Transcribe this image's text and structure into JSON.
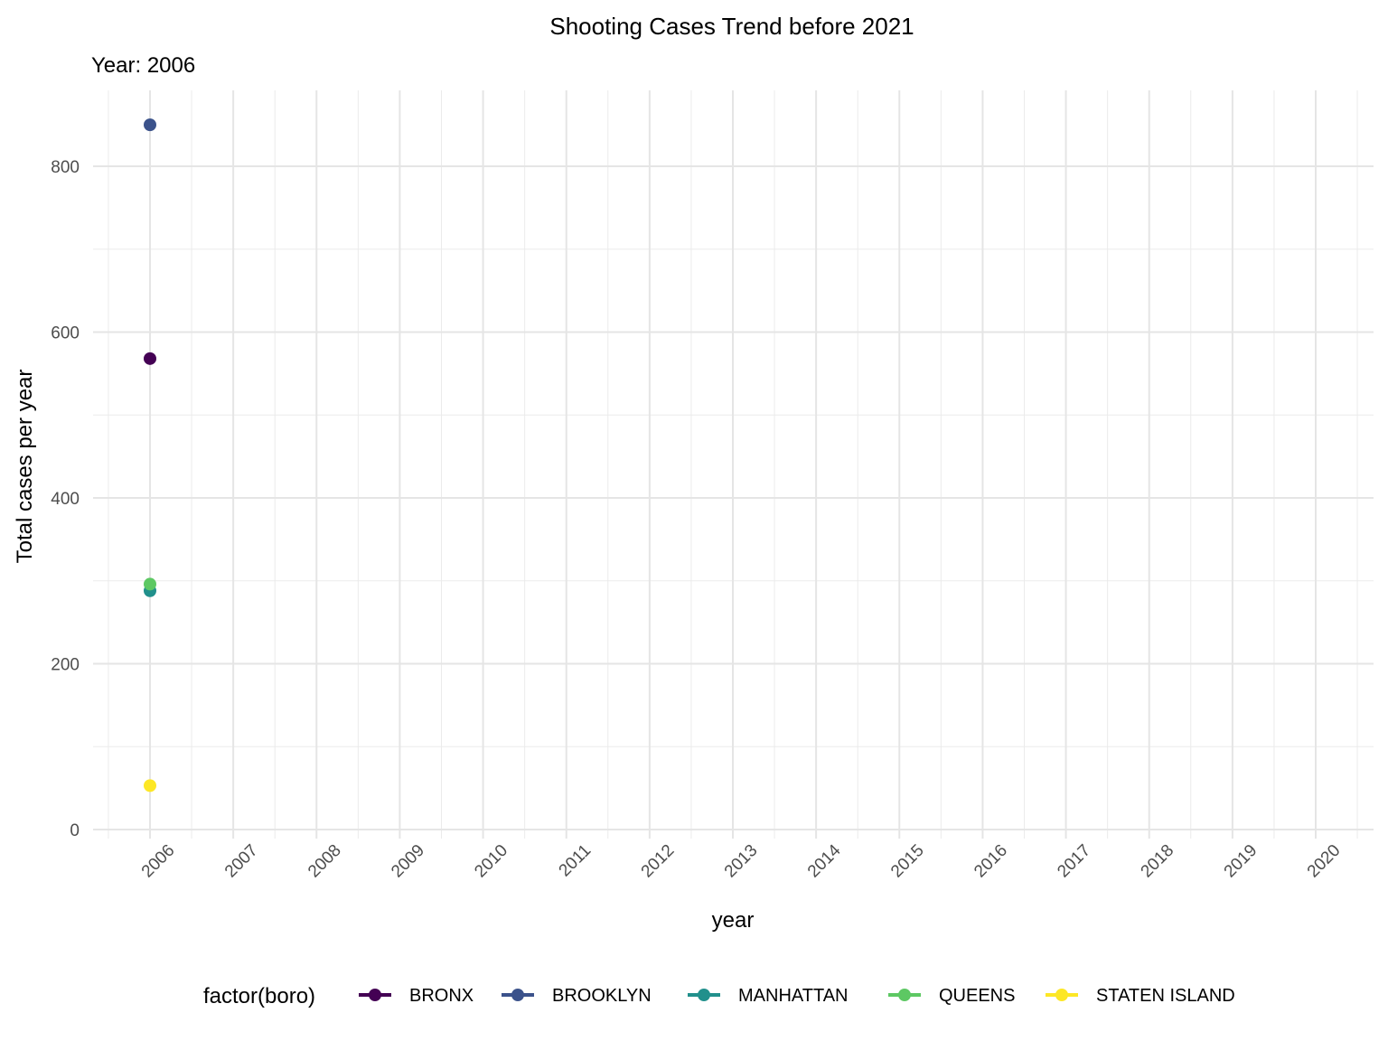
{
  "chart_data": {
    "type": "scatter",
    "title": "Shooting Cases Trend before 2021",
    "subtitle": "Year: 2006",
    "xlabel": "year",
    "ylabel": "Total cases per year",
    "xlim": [
      2005.5,
      2020.5
    ],
    "ylim": [
      -10,
      890
    ],
    "x_ticks": [
      2006,
      2007,
      2008,
      2009,
      2010,
      2011,
      2012,
      2013,
      2014,
      2015,
      2016,
      2017,
      2018,
      2019,
      2020
    ],
    "y_ticks": [
      0,
      200,
      400,
      600,
      800
    ],
    "grid": true,
    "legend": {
      "title": "factor(boro)",
      "placement": "bottom"
    },
    "series": [
      {
        "name": "BRONX",
        "color": "#440154",
        "x": [
          2006
        ],
        "y": [
          568
        ]
      },
      {
        "name": "BROOKLYN",
        "color": "#3B528B",
        "x": [
          2006
        ],
        "y": [
          850
        ]
      },
      {
        "name": "MANHATTAN",
        "color": "#21908C",
        "x": [
          2006
        ],
        "y": [
          288
        ]
      },
      {
        "name": "QUEENS",
        "color": "#5DC863",
        "x": [
          2006
        ],
        "y": [
          296
        ]
      },
      {
        "name": "STATEN ISLAND",
        "color": "#FDE725",
        "x": [
          2006
        ],
        "y": [
          53
        ]
      }
    ]
  }
}
